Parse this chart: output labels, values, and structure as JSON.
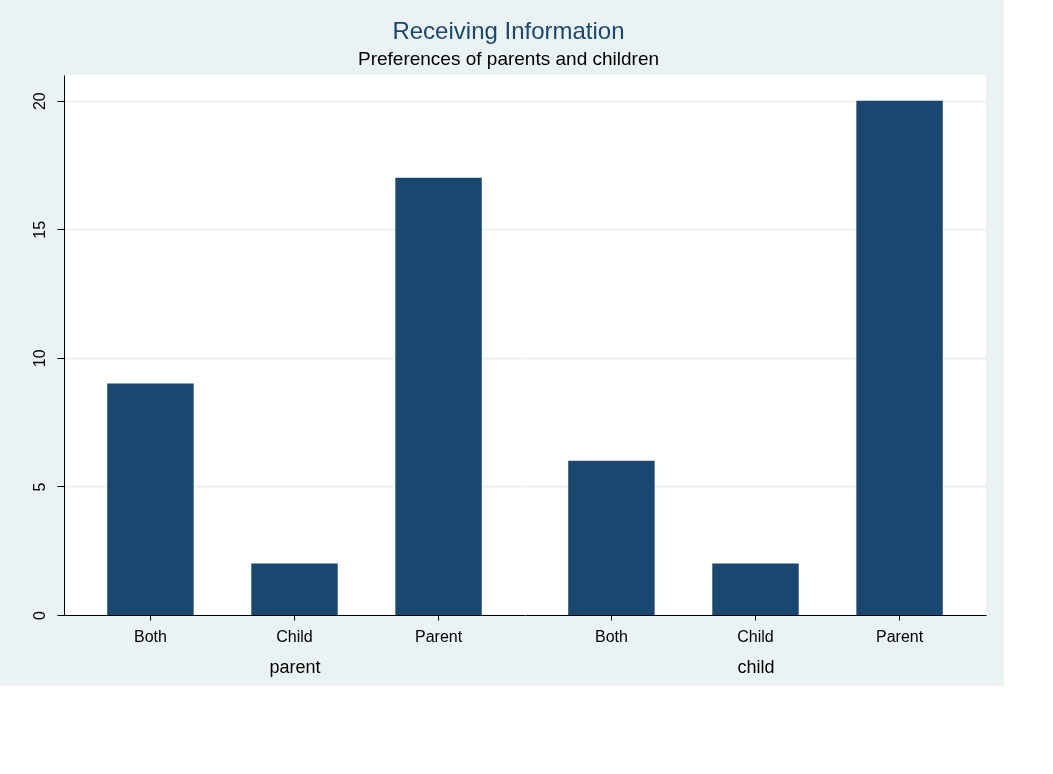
{
  "chart_data": [
    {
      "type": "bar",
      "title": "Receiving Information",
      "subtitle": "Preferences of parents and children",
      "categories": [
        "Both",
        "Child",
        "Parent"
      ],
      "values": [
        9,
        2,
        17
      ],
      "color": "#1a476f",
      "xlabel": "parent",
      "ylim": [
        0,
        21
      ],
      "yticks": [
        0,
        5,
        10,
        15,
        20
      ],
      "grid": "y"
    },
    {
      "type": "bar",
      "categories": [
        "Both",
        "Child",
        "Parent"
      ],
      "values": [
        6,
        2,
        20
      ],
      "color": "#1a476f",
      "xlabel": "child",
      "ylim": [
        0,
        21
      ],
      "yticks": [
        0,
        5,
        10,
        15,
        20
      ],
      "grid": "y",
      "tick_labels": "x"
    }
  ]
}
